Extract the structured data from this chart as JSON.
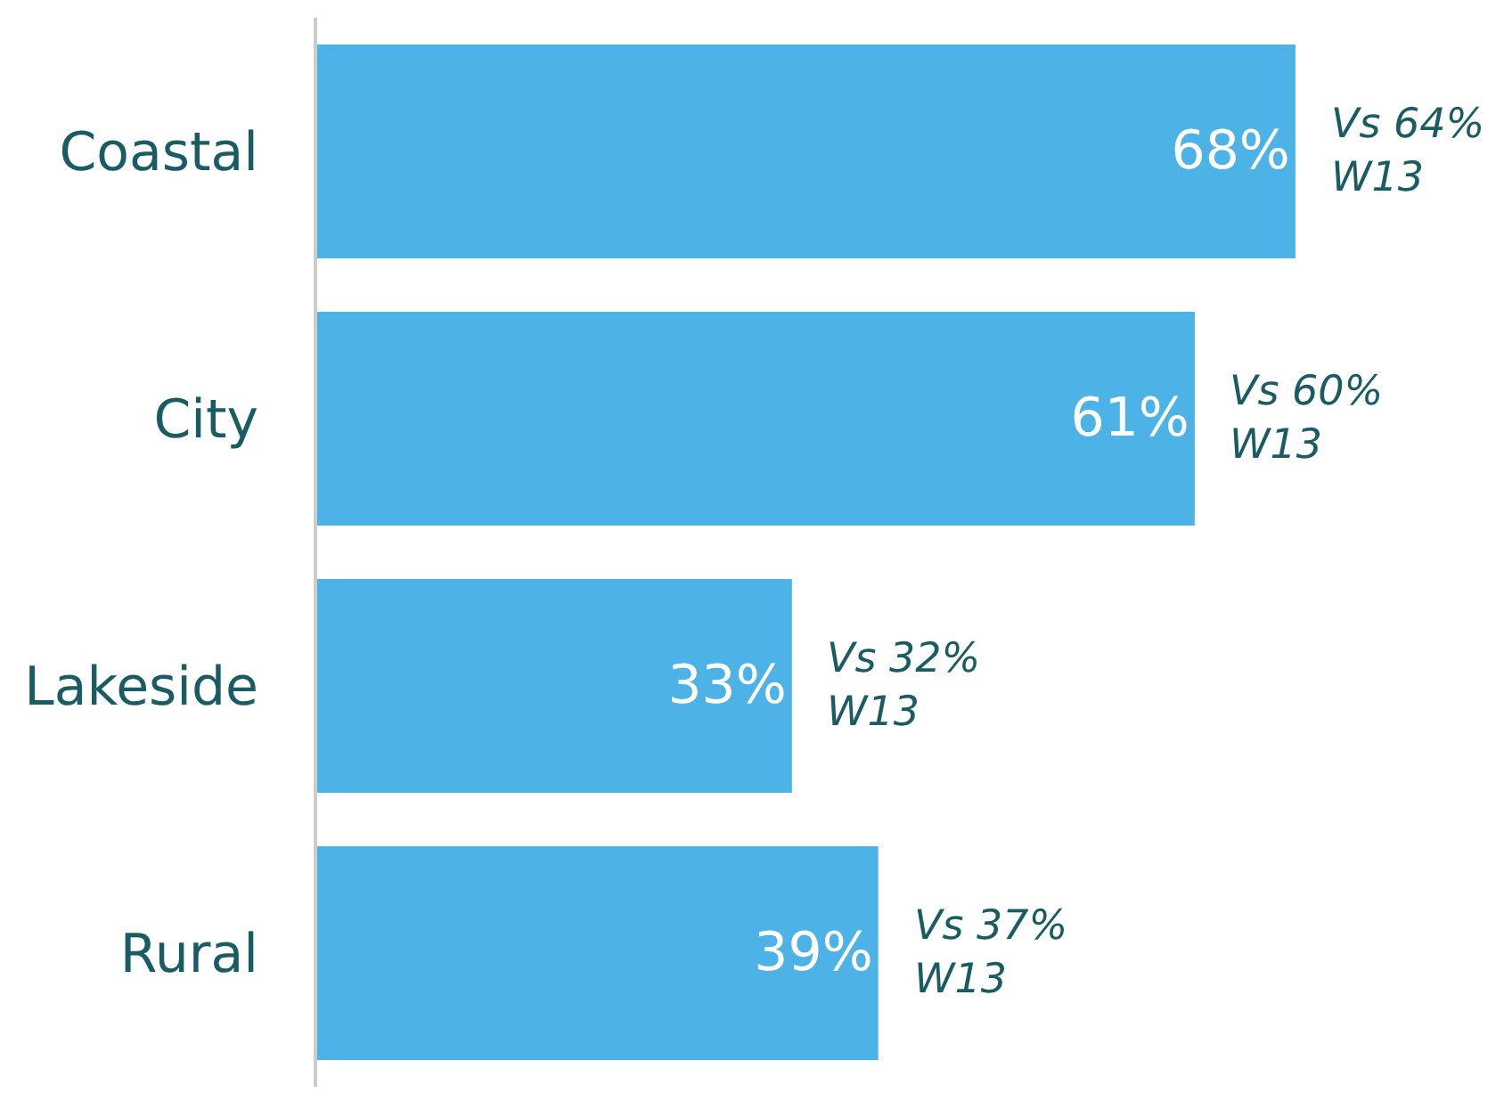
{
  "chart_data": {
    "type": "bar",
    "orientation": "horizontal",
    "categories": [
      "Coastal",
      "City",
      "Lakeside",
      "Rural"
    ],
    "values": [
      68,
      61,
      33,
      39
    ],
    "value_labels": [
      "68%",
      "61%",
      "33%",
      "39%"
    ],
    "color": "#4db3e6",
    "xlim": [
      0,
      82.5
    ],
    "tick_labels": "y",
    "annotations": [
      {
        "text": "Vs 64%\nW13",
        "x": 68,
        "y": "Coastal"
      },
      {
        "text": "Vs 60%\nW13",
        "x": 61,
        "y": "City"
      },
      {
        "text": "Vs 32%\nW13",
        "x": 33,
        "y": "Lakeside"
      },
      {
        "text": "Vs 37%\nW13",
        "x": 39,
        "y": "Rural"
      }
    ]
  }
}
